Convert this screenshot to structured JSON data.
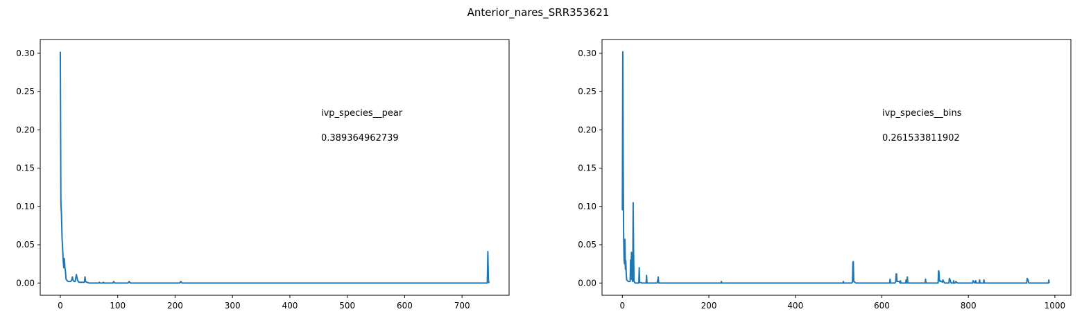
{
  "figure": {
    "suptitle": "Anterior_nares_SRR353621"
  },
  "chart_data": [
    {
      "type": "line",
      "title": "",
      "xlabel": "",
      "ylabel": "",
      "xlim": [
        -35,
        782
      ],
      "ylim": [
        -0.016,
        0.318
      ],
      "x_ticks": [
        0,
        100,
        200,
        300,
        400,
        500,
        600,
        700
      ],
      "x_tick_labels": [
        "0",
        "100",
        "200",
        "300",
        "400",
        "500",
        "600",
        "700"
      ],
      "y_ticks": [
        0.0,
        0.05,
        0.1,
        0.15,
        0.2,
        0.25,
        0.3
      ],
      "y_tick_labels": [
        "0.00",
        "0.05",
        "0.10",
        "0.15",
        "0.20",
        "0.25",
        "0.30"
      ],
      "grid": false,
      "color": "#1f77b4",
      "annotations": [
        {
          "text": "ivp_species__pear"
        },
        {
          "text": "0.389364962739"
        }
      ],
      "series": [
        {
          "x": [
            0,
            1,
            2,
            3,
            4,
            5,
            6,
            7,
            8,
            9,
            10,
            12,
            14,
            16,
            18,
            20,
            21,
            22,
            24,
            26,
            27,
            28,
            30,
            32,
            34,
            38,
            40,
            42,
            43,
            44,
            46,
            50,
            60,
            67,
            68,
            69,
            70,
            74,
            75,
            76,
            80,
            90,
            92,
            93,
            95,
            100,
            118,
            120,
            122,
            130,
            150,
            180,
            208,
            210,
            212,
            220,
            300,
            400,
            500,
            600,
            700,
            740,
            744,
            745,
            746,
            747
          ],
          "y": [
            0.302,
            0.105,
            0.09,
            0.06,
            0.045,
            0.03,
            0.02,
            0.032,
            0.02,
            0.015,
            0.005,
            0.003,
            0.002,
            0.002,
            0.002,
            0.004,
            0.008,
            0.004,
            0.002,
            0.002,
            0.007,
            0.011,
            0.004,
            0.001,
            0.001,
            0.001,
            0.001,
            0.001,
            0.008,
            0.002,
            0.001,
            0.0,
            0.0,
            0.0,
            0.001,
            0.0,
            0.0,
            0.0,
            0.001,
            0.0,
            0.0,
            0.0,
            0.0,
            0.002,
            0.0,
            0.0,
            0.0,
            0.002,
            0.0,
            0.0,
            0.0,
            0.0,
            0.0,
            0.002,
            0.0,
            0.0,
            0.0,
            0.0,
            0.0,
            0.0,
            0.0,
            0.0,
            0.0,
            0.041,
            0.003,
            0.0
          ]
        }
      ]
    },
    {
      "type": "line",
      "title": "",
      "xlabel": "",
      "ylabel": "",
      "xlim": [
        -47,
        1037
      ],
      "ylim": [
        -0.016,
        0.318
      ],
      "x_ticks": [
        0,
        200,
        400,
        600,
        800,
        1000
      ],
      "x_tick_labels": [
        "0",
        "200",
        "400",
        "600",
        "800",
        "1000"
      ],
      "y_ticks": [
        0.0,
        0.05,
        0.1,
        0.15,
        0.2,
        0.25,
        0.3
      ],
      "y_tick_labels": [
        "0.00",
        "0.05",
        "0.10",
        "0.15",
        "0.20",
        "0.25",
        "0.30"
      ],
      "grid": false,
      "color": "#1f77b4",
      "annotations": [
        {
          "text": "ivp_species__bins"
        },
        {
          "text": "0.261533811902"
        }
      ],
      "series": [
        {
          "x": [
            0,
            1,
            2,
            3,
            4,
            5,
            6,
            7,
            8,
            9,
            10,
            12,
            14,
            16,
            18,
            19,
            20,
            21,
            22,
            23,
            24,
            25,
            26,
            27,
            28,
            30,
            35,
            38,
            39,
            40,
            45,
            55,
            56,
            57,
            60,
            80,
            82,
            83,
            84,
            85,
            100,
            150,
            200,
            228,
            229,
            230,
            300,
            400,
            500,
            510,
            511,
            512,
            520,
            530,
            532,
            533,
            534,
            535,
            540,
            600,
            618,
            619,
            620,
            630,
            632,
            633,
            634,
            635,
            640,
            642,
            643,
            644,
            650,
            655,
            656,
            657,
            658,
            659,
            660,
            700,
            701,
            702,
            720,
            730,
            731,
            732,
            733,
            734,
            735,
            740,
            741,
            745,
            755,
            756,
            757,
            760,
            765,
            766,
            767,
            770,
            771,
            775,
            810,
            811,
            815,
            816,
            817,
            818,
            825,
            826,
            827,
            835,
            836,
            837,
            900,
            935,
            936,
            937,
            940,
            980,
            985,
            986,
            987
          ],
          "y": [
            0.095,
            0.302,
            0.15,
            0.06,
            0.03,
            0.025,
            0.057,
            0.018,
            0.029,
            0.012,
            0.004,
            0.003,
            0.002,
            0.002,
            0.002,
            0.03,
            0.005,
            0.04,
            0.02,
            0.003,
            0.002,
            0.105,
            0.04,
            0.003,
            0.001,
            0.0,
            0.0,
            0.0,
            0.02,
            0.001,
            0.0,
            0.0,
            0.01,
            0.0,
            0.0,
            0.0,
            0.004,
            0.008,
            0.0,
            0.0,
            0.0,
            0.0,
            0.0,
            0.0,
            0.002,
            0.0,
            0.0,
            0.0,
            0.0,
            0.0,
            0.002,
            0.0,
            0.0,
            0.0,
            0.001,
            0.027,
            0.028,
            0.002,
            0.0,
            0.0,
            0.0,
            0.005,
            0.0,
            0.0,
            0.002,
            0.012,
            0.012,
            0.002,
            0.002,
            0.0,
            0.003,
            0.0,
            0.0,
            0.0,
            0.004,
            0.0,
            0.004,
            0.008,
            0.0,
            0.0,
            0.005,
            0.0,
            0.0,
            0.0,
            0.016,
            0.015,
            0.004,
            0.002,
            0.003,
            0.001,
            0.004,
            0.0,
            0.0,
            0.006,
            0.005,
            0.0,
            0.0,
            0.003,
            0.0,
            0.0,
            0.002,
            0.0,
            0.0,
            0.003,
            0.0,
            0.001,
            0.003,
            0.0,
            0.0,
            0.004,
            0.0,
            0.0,
            0.004,
            0.0,
            0.0,
            0.0,
            0.006,
            0.005,
            0.0,
            0.0,
            0.0,
            0.004,
            0.0
          ]
        }
      ]
    }
  ]
}
